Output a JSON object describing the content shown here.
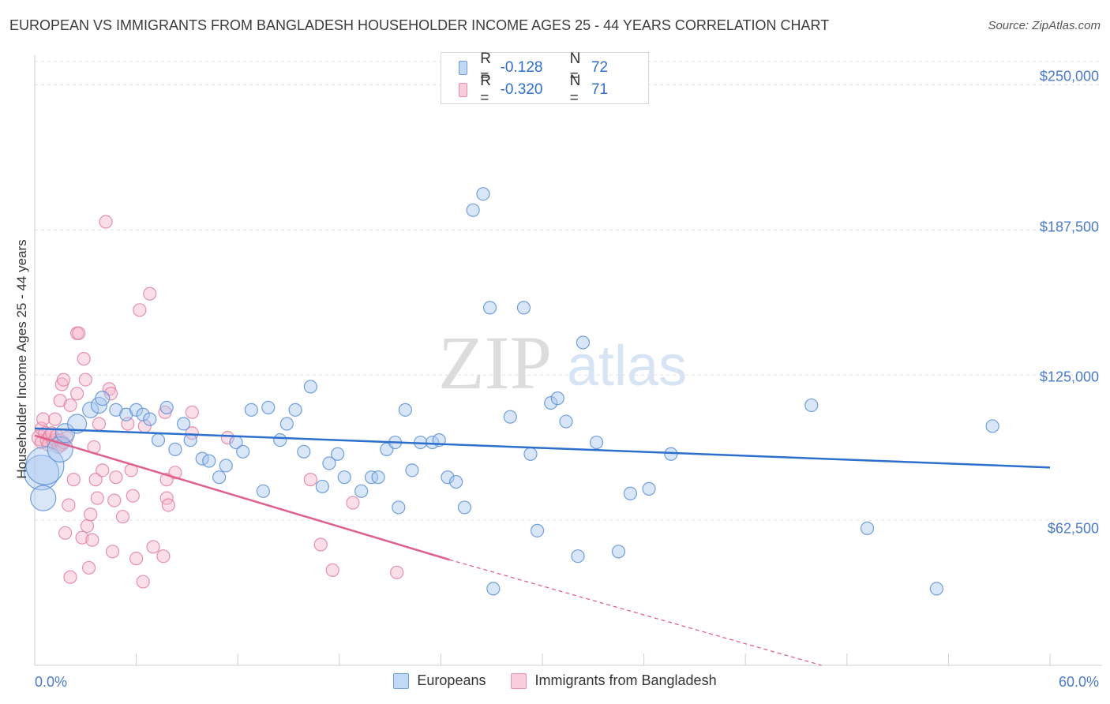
{
  "header": {
    "title": "EUROPEAN VS IMMIGRANTS FROM BANGLADESH HOUSEHOLDER INCOME AGES 25 - 44 YEARS CORRELATION CHART",
    "source": "Source: ZipAtlas.com"
  },
  "watermark": {
    "zip": "ZIP",
    "atlas": "atlas"
  },
  "legend_top": {
    "rows": [
      {
        "r_key": "R =",
        "r_value": "-0.128",
        "n_key": "N =",
        "n_value": "72"
      },
      {
        "r_key": "R =",
        "r_value": "-0.320",
        "n_key": "N =",
        "n_value": "71"
      }
    ]
  },
  "legend_bottom": {
    "series1": "Europeans",
    "series2": "Immigrants from Bangladesh"
  },
  "colors": {
    "blue_fill": "#a9c8f0",
    "blue_stroke": "#5b8fd6",
    "blue_line": "#2d6fcd",
    "pink_fill": "#f6b8cb",
    "pink_stroke": "#e07fa0",
    "pink_line": "#e0608e",
    "axis_text": "#4a7ac9"
  },
  "chart_data": {
    "type": "scatter",
    "title": "EUROPEAN VS IMMIGRANTS FROM BANGLADESH HOUSEHOLDER INCOME AGES 25 - 44 YEARS CORRELATION CHART",
    "xlabel": "",
    "ylabel": "Householder Income Ages 25 - 44 years",
    "xlim": [
      0,
      60
    ],
    "ylim": [
      0,
      260000
    ],
    "x_tick_labels": [
      "0.0%",
      "60.0%"
    ],
    "y_ticks": [
      62500,
      125000,
      187500,
      250000
    ],
    "y_tick_labels": [
      "$62,500",
      "$125,000",
      "$187,500",
      "$250,000"
    ],
    "grid": true,
    "series": [
      {
        "name": "Europeans",
        "R": -0.128,
        "N": 72,
        "trend": {
          "x": [
            0,
            60
          ],
          "y": [
            102000,
            85200
          ]
        },
        "points": [
          [
            0.4,
            83000,
            22
          ],
          [
            0.6,
            86000,
            24
          ],
          [
            0.5,
            72000,
            16
          ],
          [
            1.5,
            93000,
            16
          ],
          [
            1.8,
            100000,
            12
          ],
          [
            2.5,
            104000,
            12
          ],
          [
            3.3,
            110000,
            10
          ],
          [
            3.8,
            112000,
            10
          ],
          [
            4.0,
            115000,
            9
          ],
          [
            4.8,
            110000,
            8
          ],
          [
            5.4,
            108000,
            8
          ],
          [
            6.0,
            110000,
            8
          ],
          [
            6.4,
            108000,
            8
          ],
          [
            6.8,
            106000,
            8
          ],
          [
            7.3,
            97000,
            8
          ],
          [
            7.8,
            111000,
            8
          ],
          [
            8.3,
            93000,
            8
          ],
          [
            8.8,
            104000,
            8
          ],
          [
            9.2,
            97000,
            8
          ],
          [
            9.9,
            89000,
            8
          ],
          [
            10.3,
            88000,
            8
          ],
          [
            10.9,
            81000,
            8
          ],
          [
            11.3,
            86000,
            8
          ],
          [
            11.9,
            96000,
            8
          ],
          [
            12.3,
            92000,
            8
          ],
          [
            12.8,
            110000,
            8
          ],
          [
            13.5,
            75000,
            8
          ],
          [
            13.8,
            111000,
            8
          ],
          [
            14.5,
            97000,
            8
          ],
          [
            14.9,
            104000,
            8
          ],
          [
            15.4,
            110000,
            8
          ],
          [
            15.9,
            92000,
            8
          ],
          [
            16.3,
            120000,
            8
          ],
          [
            17.0,
            77000,
            8
          ],
          [
            17.4,
            87000,
            8
          ],
          [
            17.9,
            91000,
            8
          ],
          [
            18.3,
            81000,
            8
          ],
          [
            19.3,
            75000,
            8
          ],
          [
            19.9,
            81000,
            8
          ],
          [
            20.3,
            81000,
            8
          ],
          [
            20.8,
            93000,
            8
          ],
          [
            21.3,
            96000,
            8
          ],
          [
            21.5,
            68000,
            8
          ],
          [
            21.9,
            110000,
            8
          ],
          [
            22.3,
            84000,
            8
          ],
          [
            22.8,
            96000,
            8
          ],
          [
            23.5,
            96000,
            8
          ],
          [
            23.9,
            97000,
            8
          ],
          [
            24.4,
            81000,
            8
          ],
          [
            24.9,
            79000,
            8
          ],
          [
            25.4,
            68000,
            8
          ],
          [
            25.9,
            196000,
            8
          ],
          [
            26.5,
            203000,
            8
          ],
          [
            26.9,
            154000,
            8
          ],
          [
            27.1,
            33000,
            8
          ],
          [
            28.1,
            107000,
            8
          ],
          [
            28.9,
            154000,
            8
          ],
          [
            29.3,
            91000,
            8
          ],
          [
            29.7,
            58000,
            8
          ],
          [
            30.5,
            113000,
            8
          ],
          [
            30.9,
            115000,
            8
          ],
          [
            31.4,
            105000,
            8
          ],
          [
            32.1,
            47000,
            8
          ],
          [
            32.4,
            139000,
            8
          ],
          [
            33.2,
            96000,
            8
          ],
          [
            34.5,
            49000,
            8
          ],
          [
            35.2,
            74000,
            8
          ],
          [
            36.3,
            76000,
            8
          ],
          [
            37.6,
            91000,
            8
          ],
          [
            45.9,
            112000,
            8
          ],
          [
            49.2,
            59000,
            8
          ],
          [
            53.3,
            33000,
            8
          ],
          [
            56.6,
            103000,
            8
          ]
        ]
      },
      {
        "name": "Immigrants from Bangladesh",
        "R": -0.32,
        "N": 71,
        "trend": {
          "x": [
            0,
            24.5
          ],
          "y": [
            99000,
            45500
          ]
        },
        "trend_dashed": {
          "x": [
            24.5,
            46.5
          ],
          "y": [
            45500,
            0
          ]
        },
        "points": [
          [
            0.3,
            98000,
            10
          ],
          [
            0.4,
            102000,
            8
          ],
          [
            0.4,
            96000,
            8
          ],
          [
            0.5,
            106000,
            8
          ],
          [
            0.6,
            100000,
            8
          ],
          [
            0.7,
            97000,
            8
          ],
          [
            0.8,
            95000,
            8
          ],
          [
            0.9,
            99000,
            8
          ],
          [
            1.0,
            100000,
            8
          ],
          [
            1.1,
            96000,
            8
          ],
          [
            1.2,
            106000,
            8
          ],
          [
            1.2,
            97000,
            8
          ],
          [
            1.3,
            99000,
            8
          ],
          [
            1.4,
            94000,
            8
          ],
          [
            1.5,
            97000,
            8
          ],
          [
            1.6,
            95000,
            8
          ],
          [
            1.7,
            96000,
            8
          ],
          [
            1.5,
            114000,
            8
          ],
          [
            1.6,
            121000,
            8
          ],
          [
            1.7,
            123000,
            8
          ],
          [
            1.8,
            57000,
            8
          ],
          [
            1.9,
            98000,
            8
          ],
          [
            2.0,
            69000,
            8
          ],
          [
            2.1,
            112000,
            8
          ],
          [
            2.1,
            38000,
            8
          ],
          [
            2.3,
            80000,
            8
          ],
          [
            2.5,
            117000,
            8
          ],
          [
            2.5,
            143000,
            8
          ],
          [
            2.6,
            143000,
            8
          ],
          [
            2.8,
            55000,
            8
          ],
          [
            2.9,
            132000,
            8
          ],
          [
            3.0,
            123000,
            8
          ],
          [
            3.1,
            60000,
            8
          ],
          [
            3.2,
            42000,
            8
          ],
          [
            3.3,
            65000,
            8
          ],
          [
            3.4,
            54000,
            8
          ],
          [
            3.5,
            94000,
            8
          ],
          [
            3.6,
            80000,
            8
          ],
          [
            3.7,
            72000,
            8
          ],
          [
            3.8,
            104000,
            8
          ],
          [
            4.0,
            84000,
            8
          ],
          [
            4.2,
            191000,
            8
          ],
          [
            4.4,
            119000,
            8
          ],
          [
            4.5,
            117000,
            8
          ],
          [
            4.6,
            49000,
            8
          ],
          [
            4.7,
            71000,
            8
          ],
          [
            4.8,
            81000,
            8
          ],
          [
            5.2,
            64000,
            8
          ],
          [
            5.5,
            104000,
            8
          ],
          [
            5.7,
            84000,
            8
          ],
          [
            5.8,
            73000,
            8
          ],
          [
            6.0,
            46000,
            8
          ],
          [
            6.2,
            153000,
            8
          ],
          [
            6.4,
            36000,
            8
          ],
          [
            6.5,
            103000,
            8
          ],
          [
            6.8,
            160000,
            8
          ],
          [
            7.0,
            51000,
            8
          ],
          [
            7.6,
            47000,
            8
          ],
          [
            7.7,
            109000,
            8
          ],
          [
            7.8,
            72000,
            8
          ],
          [
            7.8,
            80000,
            8
          ],
          [
            7.9,
            69000,
            8
          ],
          [
            8.3,
            83000,
            8
          ],
          [
            9.3,
            109000,
            8
          ],
          [
            9.3,
            100000,
            8
          ],
          [
            11.4,
            98000,
            8
          ],
          [
            16.3,
            80000,
            8
          ],
          [
            16.9,
            52000,
            8
          ],
          [
            17.6,
            41000,
            8
          ],
          [
            18.8,
            70000,
            8
          ],
          [
            21.4,
            40000,
            8
          ]
        ]
      }
    ]
  }
}
